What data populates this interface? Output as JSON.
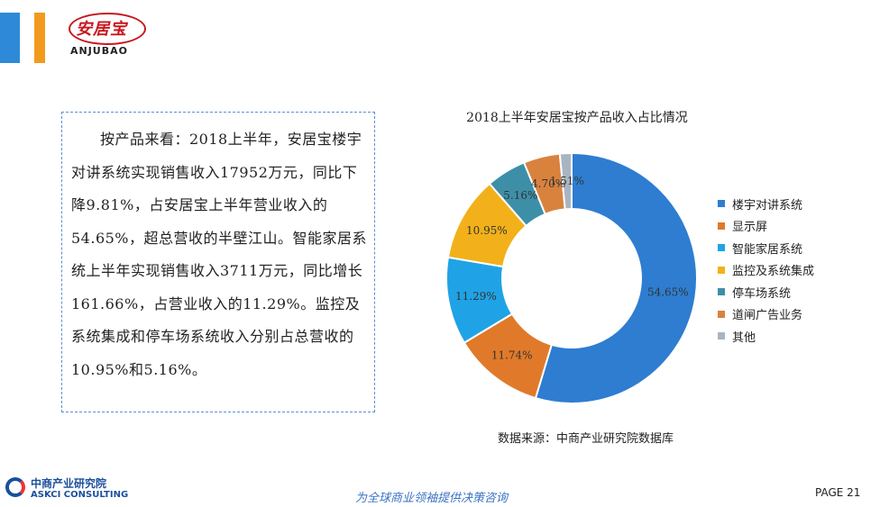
{
  "header": {
    "logo_cn": "安居宝",
    "logo_en": "ANJUBAO",
    "accent_colors": [
      "#2e8ad8",
      "#f39a1e"
    ]
  },
  "text_panel": {
    "paragraph": "按产品来看：2018上半年，安居宝楼宇对讲系统实现销售收入17952万元，同比下降9.81%，占安居宝上半年营业收入的54.65%，超总营收的半壁江山。智能家居系统上半年实现销售收入3711万元，同比增长161.66%，占营业收入的11.29%。监控及系统集成和停车场系统收入分别占总营收的10.95%和5.16%。"
  },
  "chart_data": {
    "type": "pie",
    "donut": true,
    "title": "2018上半年安居宝按产品收入占比情况",
    "labels": [
      "楼宇对讲系统",
      "显示屏",
      "智能家居系统",
      "监控及系统集成",
      "停车场系统",
      "道闸广告业务",
      "其他"
    ],
    "values": [
      54.65,
      11.74,
      11.29,
      10.95,
      5.16,
      4.7,
      1.51
    ],
    "value_labels": [
      "54.65%",
      "11.74%",
      "11.29%",
      "10.95%",
      "5.16%",
      "4.70%",
      "1.51%"
    ],
    "colors": [
      "#2e7dd1",
      "#e07a2a",
      "#1fa3e6",
      "#f2b11a",
      "#3d8fa8",
      "#d9823e",
      "#a9b4c2"
    ],
    "legend_position": "right",
    "source": "数据来源：中商产业研究院数据库"
  },
  "footer": {
    "org_cn": "中商产业研究院",
    "org_en": "ASKCI CONSULTING",
    "slogan": "为全球商业领袖提供决策咨询",
    "page_label": "PAGE  21"
  }
}
